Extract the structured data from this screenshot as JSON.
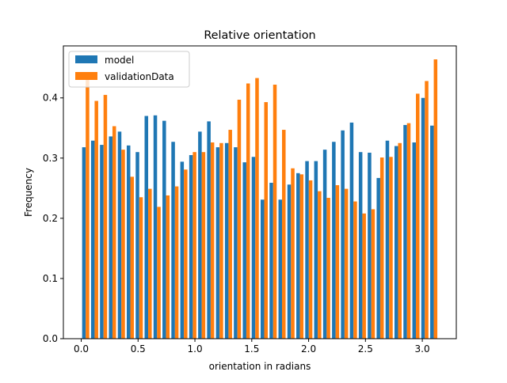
{
  "chart_data": {
    "type": "bar",
    "title": "Relative orientation",
    "xlabel": "orientation in radians",
    "ylabel": "Frequency",
    "xlim": [
      -0.157,
      3.299
    ],
    "ylim": [
      0,
      0.4864
    ],
    "xticks": [
      "0.0",
      "0.5",
      "1.0",
      "1.5",
      "2.0",
      "2.5",
      "3.0"
    ],
    "xtick_values": [
      0.0,
      0.5,
      1.0,
      1.5,
      2.0,
      2.5,
      3.0
    ],
    "yticks": [
      "0.0",
      "0.1",
      "0.2",
      "0.3",
      "0.4"
    ],
    "ytick_values": [
      0.0,
      0.1,
      0.2,
      0.3,
      0.4
    ],
    "bin_width": 0.0785,
    "bin_starts": [
      0.0,
      0.0785,
      0.157,
      0.2355,
      0.314,
      0.3925,
      0.471,
      0.5495,
      0.628,
      0.7065,
      0.785,
      0.8635,
      0.942,
      1.0205,
      1.099,
      1.1775,
      1.256,
      1.3345,
      1.413,
      1.4915,
      1.57,
      1.6485,
      1.727,
      1.8055,
      1.884,
      1.9625,
      2.041,
      2.1195,
      2.198,
      2.2765,
      2.355,
      2.4335,
      2.512,
      2.5905,
      2.669,
      2.7475,
      2.826,
      2.9045,
      2.983,
      3.0615
    ],
    "legend_position": "top-left",
    "series": [
      {
        "name": "model",
        "color": "#1f77b4",
        "values": [
          0.318,
          0.329,
          0.322,
          0.336,
          0.344,
          0.321,
          0.31,
          0.37,
          0.371,
          0.362,
          0.327,
          0.294,
          0.305,
          0.344,
          0.361,
          0.318,
          0.325,
          0.318,
          0.293,
          0.302,
          0.231,
          0.259,
          0.231,
          0.256,
          0.275,
          0.295,
          0.295,
          0.314,
          0.327,
          0.346,
          0.359,
          0.31,
          0.309,
          0.267,
          0.329,
          0.32,
          0.355,
          0.326,
          0.4,
          0.354
        ]
      },
      {
        "name": "validationData",
        "color": "#ff7f0e",
        "values": [
          0.436,
          0.395,
          0.405,
          0.353,
          0.314,
          0.269,
          0.235,
          0.249,
          0.219,
          0.238,
          0.253,
          0.281,
          0.31,
          0.31,
          0.326,
          0.325,
          0.347,
          0.397,
          0.424,
          0.433,
          0.393,
          0.422,
          0.347,
          0.283,
          0.273,
          0.263,
          0.245,
          0.234,
          0.255,
          0.249,
          0.228,
          0.208,
          0.215,
          0.301,
          0.302,
          0.325,
          0.358,
          0.407,
          0.428,
          0.464
        ]
      }
    ]
  }
}
